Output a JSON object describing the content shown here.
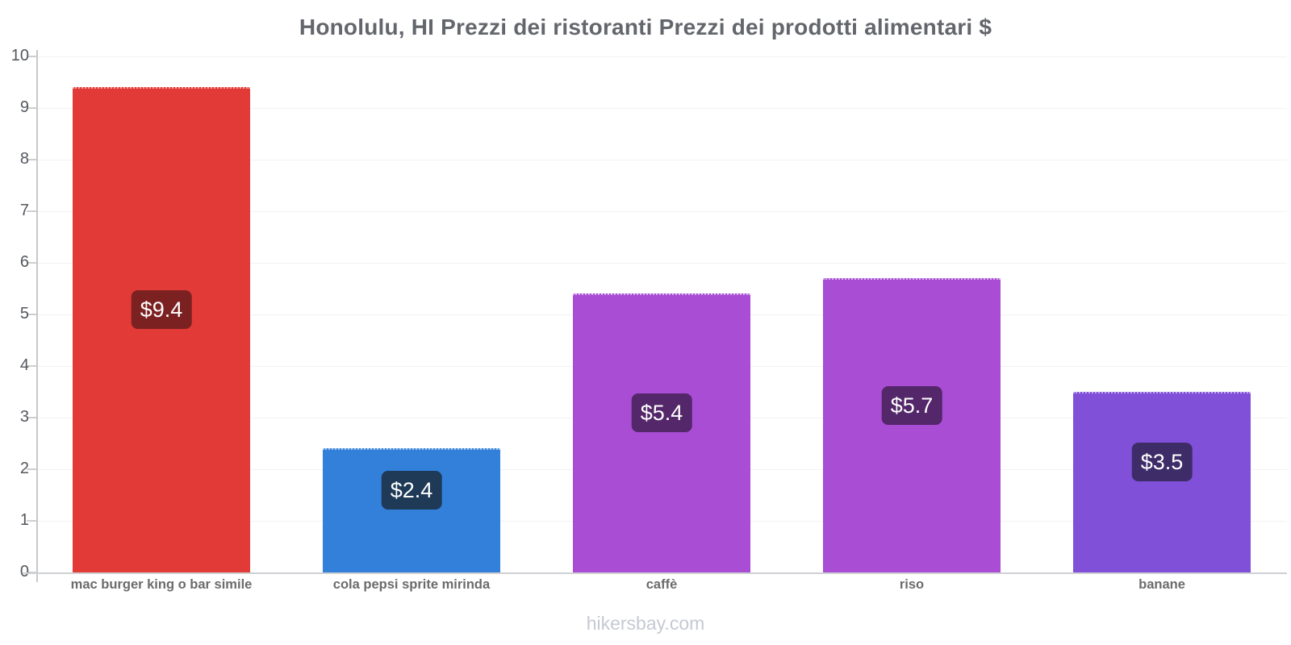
{
  "title": "Honolulu, HI Prezzi dei ristoranti Prezzi dei prodotti alimentari $",
  "footer": "hikersbay.com",
  "chart_data": {
    "type": "bar",
    "title": "Honolulu, HI Prezzi dei ristoranti Prezzi dei prodotti alimentari $",
    "categories": [
      "mac burger king o bar simile",
      "cola pepsi sprite mirinda",
      "caffè",
      "riso",
      "banane"
    ],
    "values": [
      9.4,
      2.4,
      5.4,
      5.7,
      3.5
    ],
    "value_labels": [
      "$9.4",
      "$2.4",
      "$5.4",
      "$5.7",
      "$3.5"
    ],
    "bar_colors": [
      "#e23a36",
      "#3380db",
      "#a84dd4",
      "#a84dd4",
      "#8150d8"
    ],
    "badge_colors": [
      "#7c2121",
      "#1e3a57",
      "#532769",
      "#532769",
      "#3e2c68"
    ],
    "xlabel": "",
    "ylabel": "",
    "ylim": [
      0,
      10
    ],
    "yticks": [
      0,
      1,
      2,
      3,
      4,
      5,
      6,
      7,
      8,
      9,
      10
    ],
    "grid": true,
    "legend": "none",
    "currency": "$",
    "watermark": "hikersbay.com"
  }
}
